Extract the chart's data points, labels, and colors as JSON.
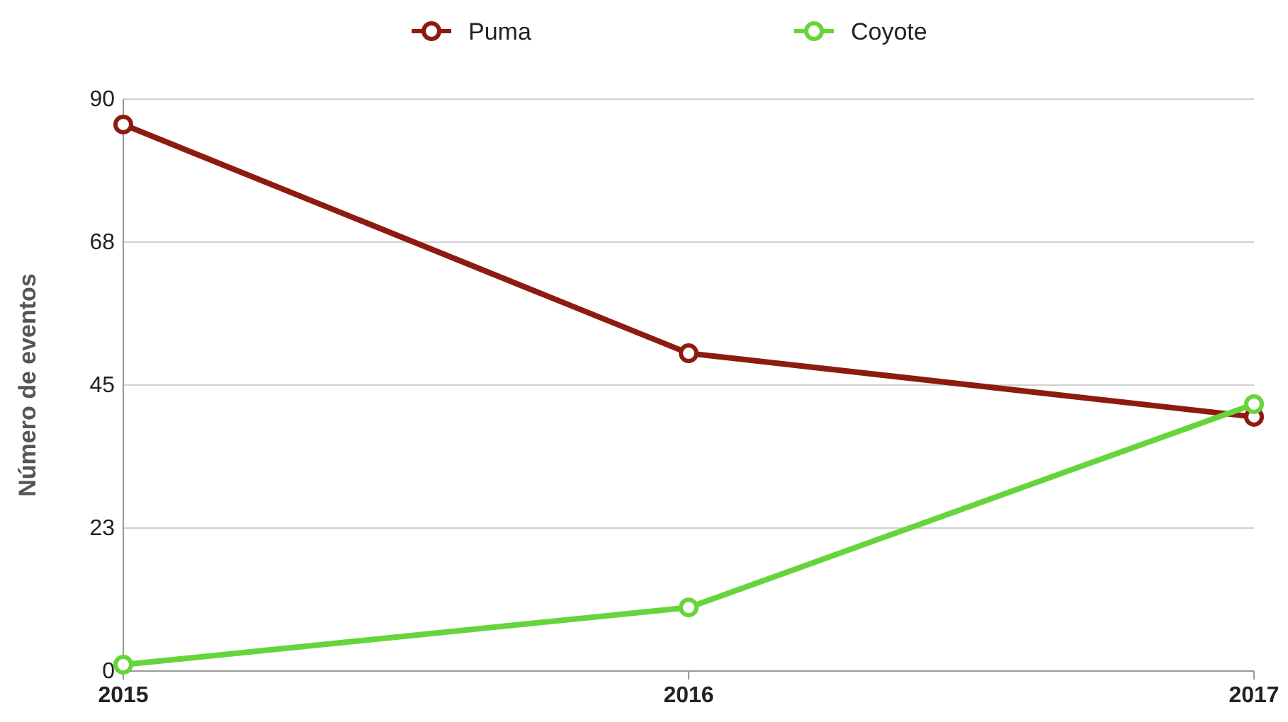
{
  "chart_data": {
    "type": "line",
    "ylabel": "Número de eventos",
    "categories": [
      "2015",
      "2016",
      "2017"
    ],
    "series": [
      {
        "name": "Puma",
        "color": "#8e1b10",
        "values": [
          86,
          50,
          40
        ]
      },
      {
        "name": "Coyote",
        "color": "#66d53b",
        "values": [
          1,
          10,
          42
        ]
      }
    ],
    "ylim": [
      0,
      90
    ],
    "yticks": [
      0,
      {
        "value": 22.5,
        "label": "23"
      },
      45,
      {
        "value": 67.5,
        "label": "68"
      },
      90
    ],
    "grid": "y",
    "legend": "top",
    "marker": "circle",
    "line_style": "solid"
  }
}
